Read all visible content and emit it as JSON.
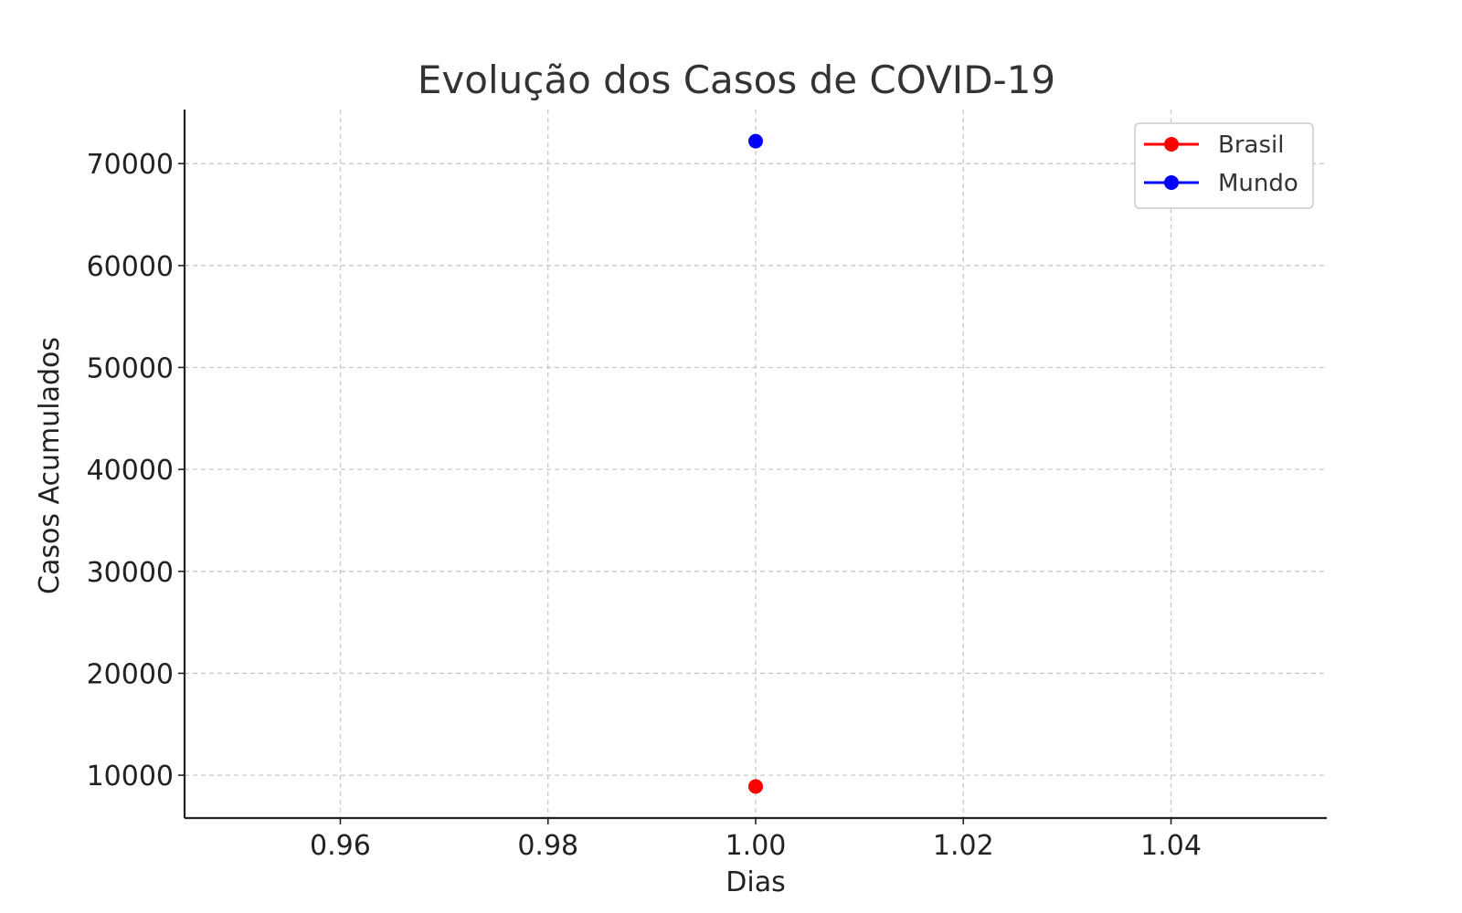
{
  "chart_data": {
    "type": "line",
    "title": "Evolução dos Casos de COVID-19",
    "xlabel": "Dias",
    "ylabel": "Casos Acumulados",
    "xlim": [
      0.945,
      1.055
    ],
    "ylim": [
      5800,
      75300
    ],
    "xticks": [
      0.96,
      0.98,
      1.0,
      1.02,
      1.04
    ],
    "xtick_labels": [
      "0.96",
      "0.98",
      "1.00",
      "1.02",
      "1.04"
    ],
    "yticks": [
      10000,
      20000,
      30000,
      40000,
      50000,
      60000,
      70000
    ],
    "ytick_labels": [
      "10000",
      "20000",
      "30000",
      "40000",
      "50000",
      "60000",
      "70000"
    ],
    "grid": true,
    "legend_position": "top-right",
    "series": [
      {
        "name": "Brasil",
        "color": "#ff0000",
        "x": [
          1.0
        ],
        "y": [
          8900
        ]
      },
      {
        "name": "Mundo",
        "color": "#0000ff",
        "x": [
          1.0
        ],
        "y": [
          72200
        ]
      }
    ]
  }
}
